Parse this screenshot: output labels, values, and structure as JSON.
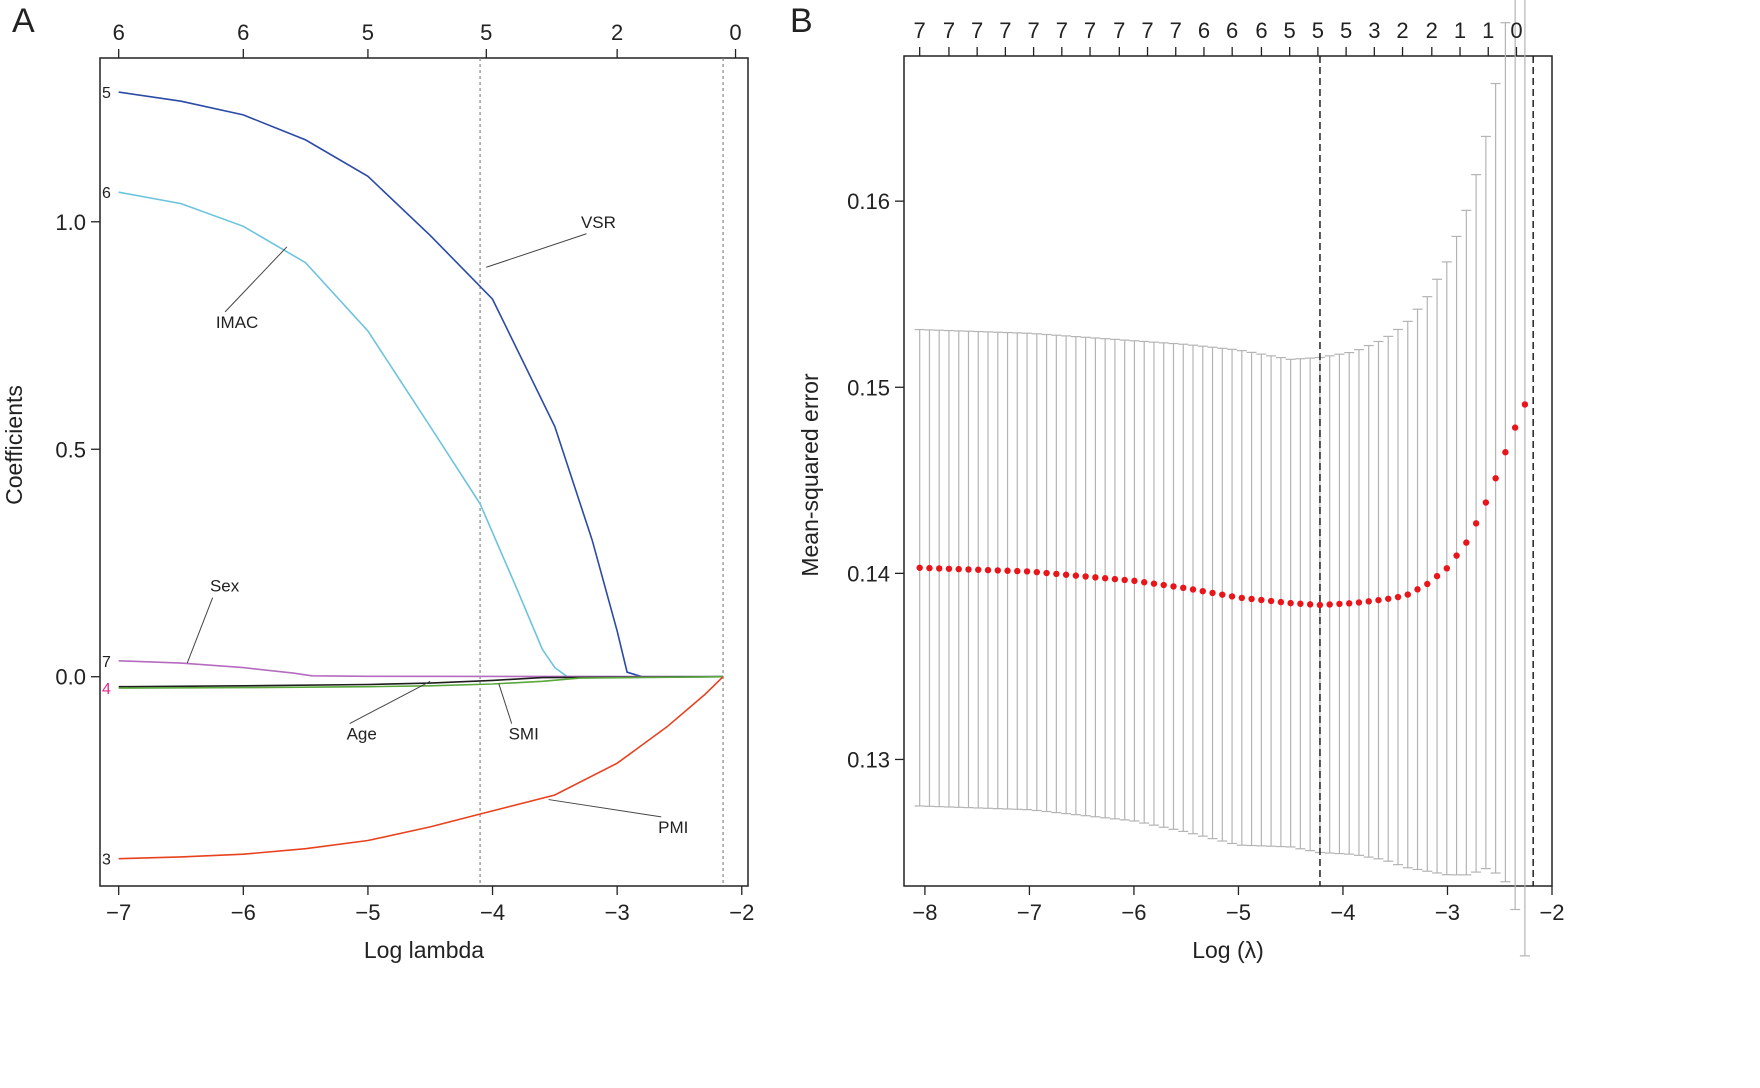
{
  "chart_data": [
    {
      "type": "line",
      "panel_label": "A",
      "xlabel": "Log lambda",
      "ylabel": "Coefficients",
      "xlim": [
        -7.15,
        -1.95
      ],
      "ylim": [
        -0.46,
        1.36
      ],
      "x_ticks": [
        -7,
        -6,
        -5,
        -4,
        -3,
        -2
      ],
      "x_tick_labels": [
        "−7",
        "−6",
        "−5",
        "−4",
        "−3",
        "−2"
      ],
      "y_ticks": [
        0.0,
        0.5,
        1.0
      ],
      "y_tick_labels": [
        "0.0",
        "0.5",
        "1.0"
      ],
      "top_axis": {
        "positions": [
          -7.0,
          -6.0,
          -5.0,
          -4.05,
          -3.0,
          -2.05
        ],
        "labels": [
          "6",
          "6",
          "5",
          "5",
          "2",
          "0"
        ]
      },
      "vlines": [
        -4.1,
        -2.15
      ],
      "series": [
        {
          "name": "VSR",
          "color": "#2a4aa6",
          "end_label": "5",
          "x": [
            -7.0,
            -6.5,
            -6.0,
            -5.5,
            -5.0,
            -4.5,
            -4.0,
            -3.5,
            -3.2,
            -3.0,
            -2.92,
            -2.8,
            -2.15
          ],
          "y": [
            1.285,
            1.265,
            1.235,
            1.18,
            1.1,
            0.97,
            0.83,
            0.55,
            0.3,
            0.1,
            0.01,
            0.0,
            0.0
          ]
        },
        {
          "name": "IMAC",
          "color": "#6cc3dd",
          "end_label": "6",
          "x": [
            -7.0,
            -6.5,
            -6.0,
            -5.5,
            -5.0,
            -4.5,
            -4.1,
            -3.8,
            -3.6,
            -3.5,
            -3.4,
            -2.15
          ],
          "y": [
            1.065,
            1.04,
            0.99,
            0.91,
            0.76,
            0.55,
            0.38,
            0.19,
            0.06,
            0.02,
            0.0,
            0.0
          ]
        },
        {
          "name": "Sex",
          "color": "#b56cc0",
          "end_label": "7",
          "x": [
            -7.0,
            -6.5,
            -6.0,
            -5.6,
            -5.45,
            -5.0,
            -2.15
          ],
          "y": [
            0.035,
            0.03,
            0.02,
            0.008,
            0.002,
            0.001,
            0.0
          ]
        },
        {
          "name": "Age",
          "color": "#1e1e1e",
          "end_label": "",
          "x": [
            -7.0,
            -6.0,
            -5.0,
            -4.5,
            -4.0,
            -3.6,
            -2.15
          ],
          "y": [
            -0.022,
            -0.02,
            -0.017,
            -0.014,
            -0.008,
            -0.002,
            0.0
          ]
        },
        {
          "name": "SMI",
          "color": "#5aa83c",
          "end_label": "4",
          "x": [
            -7.0,
            -6.0,
            -5.0,
            -4.5,
            -4.0,
            -3.6,
            -3.3,
            -2.15
          ],
          "y": [
            -0.025,
            -0.024,
            -0.022,
            -0.02,
            -0.016,
            -0.01,
            -0.003,
            0.0
          ]
        },
        {
          "name": "PMI",
          "color": "#e8411e",
          "end_label": "3",
          "x": [
            -7.0,
            -6.5,
            -6.0,
            -5.5,
            -5.0,
            -4.5,
            -4.0,
            -3.5,
            -3.0,
            -2.6,
            -2.3,
            -2.15
          ],
          "y": [
            -0.4,
            -0.396,
            -0.39,
            -0.378,
            -0.36,
            -0.33,
            -0.295,
            -0.26,
            -0.19,
            -0.11,
            -0.04,
            0.0
          ]
        }
      ],
      "annotations": [
        {
          "text": "VSR",
          "anchor": [
            -3.15,
            1.0
          ],
          "target": [
            -4.05,
            0.9
          ]
        },
        {
          "text": "IMAC",
          "anchor": [
            -6.05,
            0.78
          ],
          "target": [
            -5.65,
            0.945
          ]
        },
        {
          "text": "Sex",
          "anchor": [
            -6.15,
            0.2
          ],
          "target": [
            -6.45,
            0.03
          ]
        },
        {
          "text": "Age",
          "anchor": [
            -5.05,
            -0.125
          ],
          "target": [
            -4.5,
            -0.01
          ]
        },
        {
          "text": "SMI",
          "anchor": [
            -3.75,
            -0.125
          ],
          "target": [
            -3.95,
            -0.015
          ]
        },
        {
          "text": "PMI",
          "anchor": [
            -2.55,
            -0.33
          ],
          "target": [
            -3.55,
            -0.27
          ]
        }
      ]
    },
    {
      "type": "scatter",
      "panel_label": "B",
      "xlabel": "Log (λ)",
      "ylabel": "Mean-squared error",
      "xlim": [
        -8.2,
        -2.0
      ],
      "ylim": [
        0.1232,
        0.1678
      ],
      "x_ticks": [
        -8,
        -7,
        -6,
        -5,
        -4,
        -3,
        -2
      ],
      "x_tick_labels": [
        "−8",
        "−7",
        "−6",
        "−5",
        "−4",
        "−3",
        "−2"
      ],
      "y_ticks": [
        0.13,
        0.14,
        0.15,
        0.16
      ],
      "y_tick_labels": [
        "0.13",
        "0.14",
        "0.15",
        "0.16"
      ],
      "top_axis": {
        "positions": [
          -8.05,
          -7.77,
          -7.5,
          -7.23,
          -6.96,
          -6.69,
          -6.42,
          -6.14,
          -5.87,
          -5.6,
          -5.33,
          -5.06,
          -4.78,
          -4.51,
          -4.24,
          -3.97,
          -3.7,
          -3.43,
          -3.15,
          -2.88,
          -2.61,
          -2.34
        ],
        "labels": [
          "7",
          "7",
          "7",
          "7",
          "7",
          "7",
          "7",
          "7",
          "7",
          "7",
          "6",
          "6",
          "6",
          "5",
          "5",
          "5",
          "3",
          "2",
          "2",
          "1",
          "1",
          "0"
        ]
      },
      "vlines": [
        -4.22,
        -2.18
      ],
      "curve": {
        "x_start": -8.05,
        "x_step": 0.0934,
        "n": 63,
        "keys_x": [
          -8.05,
          -7.0,
          -6.0,
          -5.5,
          -5.0,
          -4.5,
          -4.22,
          -3.9,
          -3.6,
          -3.4,
          -3.2,
          -3.0,
          -2.8,
          -2.6,
          -2.4,
          -2.25,
          -2.18
        ],
        "keys_mean": [
          0.1403,
          0.1401,
          0.1396,
          0.1392,
          0.1387,
          0.1384,
          0.1383,
          0.1384,
          0.1386,
          0.1388,
          0.1394,
          0.1403,
          0.1418,
          0.1442,
          0.1472,
          0.1492,
          0.1495
        ],
        "keys_half": [
          0.0128,
          0.0128,
          0.0129,
          0.0131,
          0.0133,
          0.0131,
          0.0133,
          0.0135,
          0.014,
          0.0146,
          0.0154,
          0.0165,
          0.018,
          0.02,
          0.024,
          0.03,
          0.0325
        ]
      },
      "dot_color": "#e8161a",
      "errorbar_color": "#b4b4b4"
    }
  ]
}
